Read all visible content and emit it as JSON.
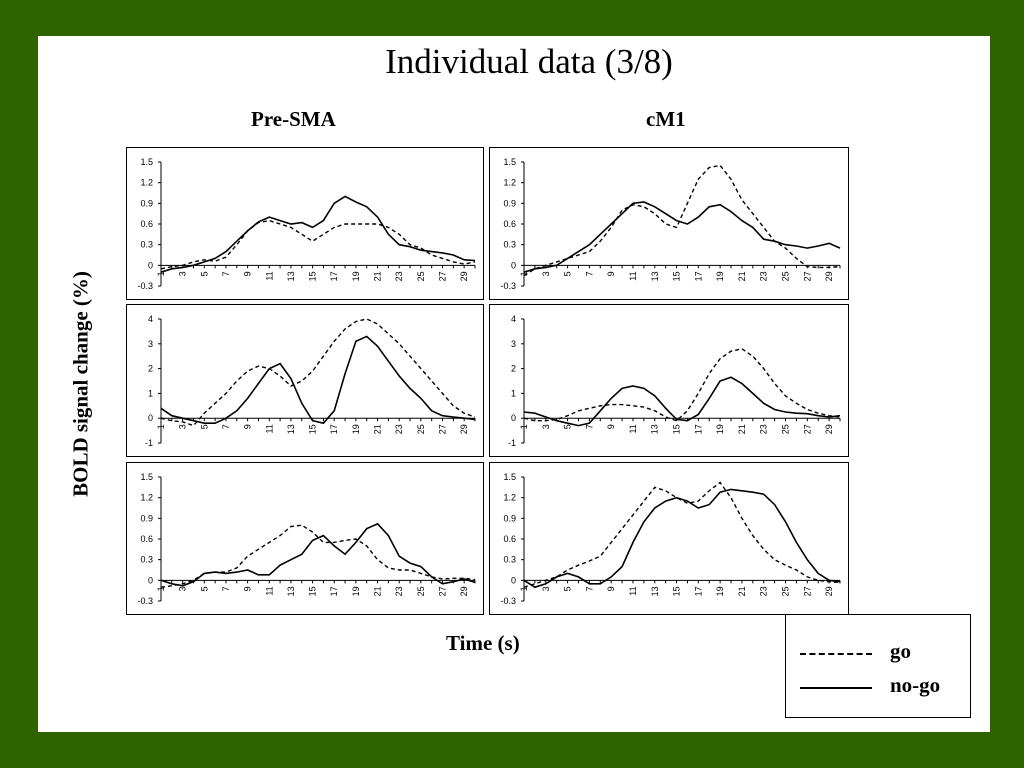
{
  "slide": {
    "title": "Individual  data (3/8)",
    "columns": [
      "Pre-SMA",
      "cM1"
    ],
    "ylabel": "BOLD signal change (%)",
    "xlabel": "Time (s)",
    "frame_color": "#2f6300"
  },
  "legend": [
    {
      "label": "go",
      "style": "dashed"
    },
    {
      "label": "no-go",
      "style": "solid"
    }
  ],
  "chart_data": [
    {
      "type": "line",
      "region": "Pre-SMA",
      "row": 1,
      "x": [
        1,
        2,
        3,
        4,
        5,
        6,
        7,
        8,
        9,
        10,
        11,
        12,
        13,
        14,
        15,
        16,
        17,
        18,
        19,
        20,
        21,
        22,
        23,
        24,
        25,
        26,
        27,
        28,
        29,
        30
      ],
      "x_ticks": [
        "1",
        "3",
        "5",
        "7",
        "9",
        "11",
        "13",
        "15",
        "17",
        "19",
        "21",
        "23",
        "25",
        "27",
        "29"
      ],
      "y_ticks": [
        "1.5",
        "1.2",
        "0.9",
        "0.6",
        "0.3",
        "0",
        "-0.3"
      ],
      "ylim": [
        -0.3,
        1.5
      ],
      "series": [
        {
          "name": "go",
          "style": "dashed",
          "values": [
            -0.05,
            -0.02,
            0,
            0.05,
            0.08,
            0.06,
            0.12,
            0.3,
            0.5,
            0.62,
            0.65,
            0.6,
            0.55,
            0.45,
            0.35,
            0.45,
            0.55,
            0.6,
            0.6,
            0.6,
            0.6,
            0.55,
            0.45,
            0.3,
            0.25,
            0.15,
            0.1,
            0.05,
            0.02,
            0.05
          ]
        },
        {
          "name": "no-go",
          "style": "solid",
          "values": [
            -0.1,
            -0.05,
            -0.03,
            0,
            0.05,
            0.1,
            0.2,
            0.35,
            0.5,
            0.63,
            0.7,
            0.65,
            0.6,
            0.62,
            0.55,
            0.65,
            0.9,
            1.0,
            0.92,
            0.85,
            0.7,
            0.45,
            0.3,
            0.27,
            0.22,
            0.2,
            0.18,
            0.15,
            0.08,
            0.07
          ]
        }
      ]
    },
    {
      "type": "line",
      "region": "cM1",
      "row": 1,
      "x": [
        1,
        2,
        3,
        4,
        5,
        6,
        7,
        8,
        9,
        10,
        11,
        12,
        13,
        14,
        15,
        16,
        17,
        18,
        19,
        20,
        21,
        22,
        23,
        24,
        25,
        26,
        27,
        28,
        29,
        30
      ],
      "x_ticks": [
        "1",
        "3",
        "5",
        "7",
        "9",
        "11",
        "13",
        "15",
        "17",
        "19",
        "21",
        "23",
        "25",
        "27",
        "29"
      ],
      "y_ticks": [
        "1.5",
        "1.2",
        "0.9",
        "0.6",
        "0.3",
        "0",
        "-0.3"
      ],
      "ylim": [
        -0.3,
        1.5
      ],
      "series": [
        {
          "name": "go",
          "style": "dashed",
          "values": [
            -0.15,
            -0.05,
            0,
            0.05,
            0.1,
            0.15,
            0.2,
            0.35,
            0.55,
            0.8,
            0.88,
            0.85,
            0.75,
            0.6,
            0.55,
            0.9,
            1.25,
            1.42,
            1.45,
            1.25,
            0.95,
            0.75,
            0.55,
            0.35,
            0.25,
            0.1,
            -0.02,
            -0.03,
            -0.03,
            -0.02
          ]
        },
        {
          "name": "no-go",
          "style": "solid",
          "values": [
            -0.1,
            -0.05,
            -0.03,
            0,
            0.1,
            0.2,
            0.3,
            0.45,
            0.6,
            0.75,
            0.9,
            0.92,
            0.85,
            0.75,
            0.65,
            0.6,
            0.7,
            0.85,
            0.88,
            0.78,
            0.65,
            0.55,
            0.38,
            0.35,
            0.3,
            0.28,
            0.25,
            0.28,
            0.32,
            0.25
          ]
        }
      ]
    },
    {
      "type": "line",
      "region": "Pre-SMA",
      "row": 2,
      "x": [
        1,
        2,
        3,
        4,
        5,
        6,
        7,
        8,
        9,
        10,
        11,
        12,
        13,
        14,
        15,
        16,
        17,
        18,
        19,
        20,
        21,
        22,
        23,
        24,
        25,
        26,
        27,
        28,
        29,
        30
      ],
      "x_ticks": [
        "1",
        "3",
        "5",
        "7",
        "9",
        "11",
        "13",
        "15",
        "17",
        "19",
        "21",
        "23",
        "25",
        "27",
        "29"
      ],
      "y_ticks": [
        "4",
        "3",
        "2",
        "1",
        "0",
        "-1"
      ],
      "ylim": [
        -1,
        4
      ],
      "series": [
        {
          "name": "go",
          "style": "dashed",
          "values": [
            0,
            -0.1,
            -0.15,
            -0.3,
            0.2,
            0.6,
            1.0,
            1.5,
            1.9,
            2.1,
            2.0,
            1.7,
            1.3,
            1.5,
            1.9,
            2.5,
            3.1,
            3.6,
            3.9,
            4.0,
            3.8,
            3.4,
            3.0,
            2.5,
            2.0,
            1.5,
            1.0,
            0.5,
            0.2,
            0.05
          ]
        },
        {
          "name": "no-go",
          "style": "solid",
          "values": [
            0.4,
            0.1,
            0,
            -0.1,
            -0.2,
            -0.2,
            0,
            0.3,
            0.8,
            1.4,
            2.0,
            2.2,
            1.6,
            0.6,
            -0.1,
            -0.2,
            0.3,
            1.8,
            3.1,
            3.3,
            2.9,
            2.3,
            1.7,
            1.2,
            0.8,
            0.3,
            0.1,
            0.05,
            0,
            -0.05
          ]
        }
      ]
    },
    {
      "type": "line",
      "region": "cM1",
      "row": 2,
      "x": [
        1,
        2,
        3,
        4,
        5,
        6,
        7,
        8,
        9,
        10,
        11,
        12,
        13,
        14,
        15,
        16,
        17,
        18,
        19,
        20,
        21,
        22,
        23,
        24,
        25,
        26,
        27,
        28,
        29,
        30
      ],
      "x_ticks": [
        "1",
        "3",
        "5",
        "7",
        "9",
        "11",
        "13",
        "15",
        "17",
        "19",
        "21",
        "23",
        "25",
        "27",
        "29"
      ],
      "y_ticks": [
        "4",
        "3",
        "2",
        "1",
        "0",
        "-1"
      ],
      "ylim": [
        -1,
        4
      ],
      "series": [
        {
          "name": "go",
          "style": "dashed",
          "values": [
            0,
            -0.1,
            -0.1,
            -0.05,
            0.1,
            0.3,
            0.4,
            0.5,
            0.55,
            0.55,
            0.5,
            0.45,
            0.3,
            0.05,
            -0.1,
            0.3,
            1.0,
            1.8,
            2.4,
            2.7,
            2.8,
            2.5,
            2.0,
            1.4,
            0.9,
            0.6,
            0.35,
            0.2,
            0.1,
            0.05
          ]
        },
        {
          "name": "no-go",
          "style": "solid",
          "values": [
            0.25,
            0.2,
            0.05,
            -0.1,
            -0.2,
            -0.3,
            -0.2,
            0.3,
            0.8,
            1.2,
            1.3,
            1.2,
            0.9,
            0.4,
            -0.05,
            -0.1,
            0.15,
            0.8,
            1.5,
            1.65,
            1.4,
            1.0,
            0.6,
            0.35,
            0.25,
            0.2,
            0.18,
            0.1,
            0.05,
            0.1
          ]
        }
      ]
    },
    {
      "type": "line",
      "region": "Pre-SMA",
      "row": 3,
      "x": [
        1,
        2,
        3,
        4,
        5,
        6,
        7,
        8,
        9,
        10,
        11,
        12,
        13,
        14,
        15,
        16,
        17,
        18,
        19,
        20,
        21,
        22,
        23,
        24,
        25,
        26,
        27,
        28,
        29,
        30
      ],
      "x_ticks": [
        "1",
        "3",
        "5",
        "7",
        "9",
        "11",
        "13",
        "15",
        "17",
        "19",
        "21",
        "23",
        "25",
        "27",
        "29"
      ],
      "y_ticks": [
        "1.5",
        "1.2",
        "0.9",
        "0.6",
        "0.3",
        "0",
        "-0.3"
      ],
      "ylim": [
        -0.3,
        1.5
      ],
      "series": [
        {
          "name": "go",
          "style": "dashed",
          "values": [
            -0.1,
            -0.08,
            -0.05,
            0,
            0.1,
            0.12,
            0.12,
            0.18,
            0.35,
            0.45,
            0.55,
            0.65,
            0.78,
            0.8,
            0.7,
            0.55,
            0.55,
            0.58,
            0.6,
            0.5,
            0.3,
            0.18,
            0.15,
            0.15,
            0.1,
            0.05,
            0.02,
            0.03,
            0.03,
            0.01
          ]
        },
        {
          "name": "no-go",
          "style": "solid",
          "values": [
            0,
            -0.05,
            -0.08,
            -0.02,
            0.1,
            0.12,
            0.1,
            0.12,
            0.15,
            0.08,
            0.08,
            0.22,
            0.3,
            0.38,
            0.58,
            0.65,
            0.5,
            0.38,
            0.55,
            0.75,
            0.82,
            0.65,
            0.35,
            0.25,
            0.2,
            0.05,
            -0.05,
            -0.02,
            0.02,
            -0.03
          ]
        }
      ]
    },
    {
      "type": "line",
      "region": "cM1",
      "row": 3,
      "x": [
        1,
        2,
        3,
        4,
        5,
        6,
        7,
        8,
        9,
        10,
        11,
        12,
        13,
        14,
        15,
        16,
        17,
        18,
        19,
        20,
        21,
        22,
        23,
        24,
        25,
        26,
        27,
        28,
        29,
        30
      ],
      "x_ticks": [
        "1",
        "3",
        "5",
        "7",
        "9",
        "11",
        "13",
        "15",
        "17",
        "19",
        "21",
        "23",
        "25",
        "27",
        "29"
      ],
      "y_ticks": [
        "1.5",
        "1.2",
        "0.9",
        "0.6",
        "0.3",
        "0",
        "-0.3"
      ],
      "ylim": [
        -0.3,
        1.5
      ],
      "series": [
        {
          "name": "go",
          "style": "dashed",
          "values": [
            -0.1,
            -0.05,
            0,
            0.05,
            0.15,
            0.22,
            0.28,
            0.35,
            0.55,
            0.75,
            0.95,
            1.15,
            1.35,
            1.3,
            1.2,
            1.12,
            1.15,
            1.3,
            1.42,
            1.2,
            0.9,
            0.65,
            0.45,
            0.3,
            0.22,
            0.15,
            0.05,
            0,
            -0.02,
            -0.03
          ]
        },
        {
          "name": "no-go",
          "style": "solid",
          "values": [
            0,
            -0.1,
            -0.05,
            0.05,
            0.1,
            0.05,
            -0.05,
            -0.05,
            0.05,
            0.2,
            0.55,
            0.85,
            1.05,
            1.15,
            1.2,
            1.15,
            1.05,
            1.1,
            1.28,
            1.32,
            1.3,
            1.28,
            1.25,
            1.1,
            0.85,
            0.55,
            0.3,
            0.1,
            0,
            -0.02
          ]
        }
      ]
    }
  ]
}
